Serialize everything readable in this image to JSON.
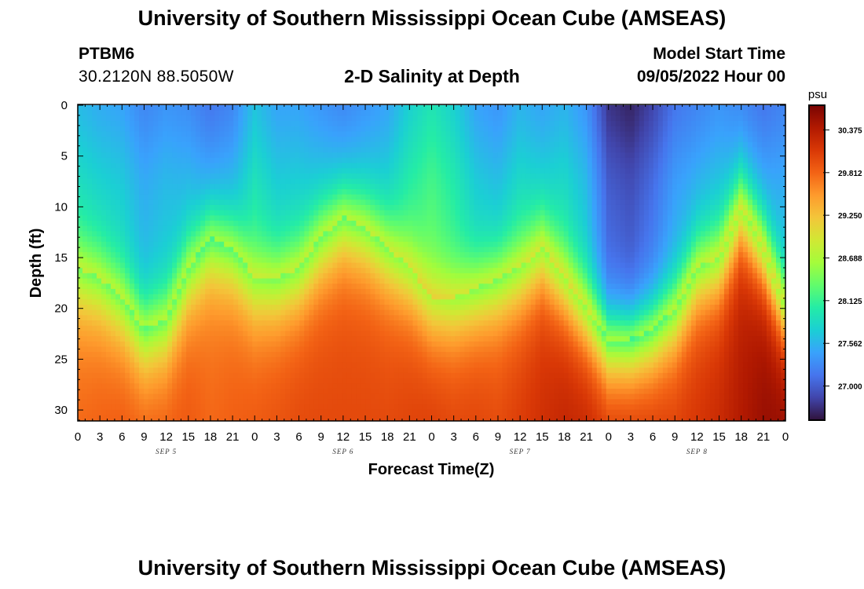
{
  "header": {
    "title": "University of Southern Mississippi Ocean Cube (AMSEAS)",
    "station_id": "PTBM6",
    "coords": "30.2120N  88.5050W",
    "subtitle": "2-D Salinity at Depth",
    "model_start_label": "Model Start Time",
    "model_start_value": "09/05/2022 Hour 00"
  },
  "footer": {
    "title": "University of Southern Mississippi Ocean Cube (AMSEAS)"
  },
  "colors": {
    "background": "#ffffff",
    "scale": [
      "#30123b",
      "#4145ab",
      "#4675ed",
      "#39a2fc",
      "#1bcfd4",
      "#24eca6",
      "#61fc6c",
      "#a4fc3b",
      "#d1e834",
      "#f3c63a",
      "#fe9b2d",
      "#f36315",
      "#d93806",
      "#b11901",
      "#7a0403"
    ]
  },
  "chart_data": {
    "type": "heatmap",
    "title": "2-D Salinity at Depth",
    "xlabel": "Forecast Time(Z)",
    "ylabel": "Depth (ft)",
    "units": "psu",
    "x_range_hours": [
      0,
      96
    ],
    "ylim": [
      0,
      31
    ],
    "y_ticks": [
      "0",
      "5",
      "10",
      "15",
      "20",
      "25",
      "30"
    ],
    "x_tick_labels": [
      "0",
      "3",
      "6",
      "9",
      "12",
      "15",
      "18",
      "21",
      "0",
      "3",
      "6",
      "9",
      "12",
      "15",
      "18",
      "21",
      "0",
      "3",
      "6",
      "9",
      "12",
      "15",
      "18",
      "21",
      "0",
      "3",
      "6",
      "9",
      "12",
      "15",
      "18",
      "21",
      "0"
    ],
    "date_labels": [
      {
        "hour": 12,
        "label": "SEP 5"
      },
      {
        "hour": 36,
        "label": "SEP 6"
      },
      {
        "hour": 60,
        "label": "SEP 7"
      },
      {
        "hour": 84,
        "label": "SEP 8"
      }
    ],
    "colorbar": {
      "range": [
        26.55,
        30.7
      ],
      "ticks": [
        "30.375",
        "29.812",
        "29.250",
        "28.688",
        "28.125",
        "27.562",
        "27.000"
      ]
    },
    "time_hours": [
      0,
      3,
      6,
      9,
      12,
      15,
      18,
      21,
      24,
      27,
      30,
      33,
      36,
      39,
      42,
      45,
      48,
      51,
      54,
      57,
      60,
      63,
      66,
      69,
      72,
      75,
      78,
      81,
      84,
      87,
      90,
      93,
      96
    ],
    "surface_salinity_psu": [
      27.55,
      27.45,
      27.4,
      27.2,
      27.3,
      27.25,
      27.1,
      27.2,
      27.6,
      27.4,
      27.4,
      27.3,
      27.2,
      27.3,
      27.4,
      27.7,
      27.9,
      27.7,
      27.4,
      27.3,
      27.5,
      27.4,
      27.5,
      27.3,
      26.7,
      26.6,
      26.8,
      27.1,
      27.2,
      27.3,
      27.2,
      27.1,
      27.2
    ],
    "halocline_depth_ft": [
      16,
      17,
      19,
      22,
      21,
      16,
      13,
      14,
      17,
      17,
      16,
      13,
      11,
      12,
      14,
      16,
      19,
      19,
      18,
      17,
      16,
      14,
      17,
      20,
      23,
      23,
      22,
      20,
      16,
      15,
      10,
      14,
      20
    ],
    "bottom_salinity_psu": [
      29.8,
      29.85,
      29.9,
      29.9,
      29.9,
      29.9,
      29.8,
      29.85,
      29.9,
      29.95,
      30.0,
      30.0,
      30.0,
      30.0,
      30.0,
      30.05,
      30.1,
      30.05,
      30.05,
      30.0,
      30.1,
      30.2,
      30.3,
      30.3,
      30.2,
      30.2,
      30.15,
      30.1,
      30.15,
      30.25,
      30.4,
      30.55,
      30.6
    ]
  }
}
